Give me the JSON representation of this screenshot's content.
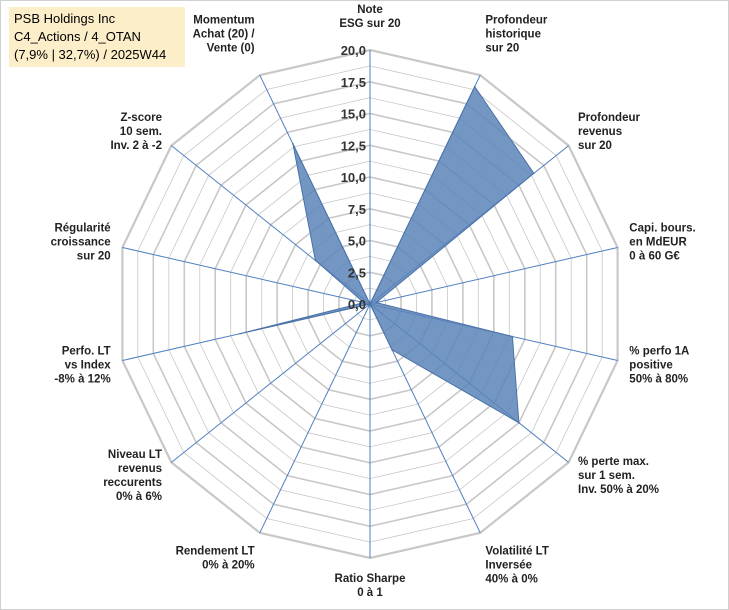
{
  "title_box": {
    "line1": "PSB Holdings Inc",
    "line2": "C4_Actions / 4_OTAN",
    "line3": "(7,9% | 32,7%) / 2025W44"
  },
  "colors": {
    "fill": "#5b84b8",
    "stroke": "#4a72a8",
    "grid": "#c8c8c8",
    "spoke": "#4f7fc0",
    "title_bg": "#fdeeca"
  },
  "chart_data": {
    "type": "radar",
    "range": [
      0,
      20
    ],
    "ticks": [
      "0,0",
      "2,5",
      "5,0",
      "7,5",
      "10,0",
      "12,5",
      "15,0",
      "17,5",
      "20,0"
    ],
    "axes": [
      {
        "label": [
          "Note",
          "ESG sur 20"
        ],
        "value": 0
      },
      {
        "label": [
          "Profondeur",
          "historique",
          "sur 20"
        ],
        "value": 19.0
      },
      {
        "label": [
          "Profondeur",
          "revenus",
          "sur 20"
        ],
        "value": 16.5
      },
      {
        "label": [
          "Capi. bours.",
          "en MdEUR",
          "0 à 60 G€"
        ],
        "value": 0.5
      },
      {
        "label": [
          "% perfo 1A",
          "positive",
          "50% à 80%"
        ],
        "value": 11.5
      },
      {
        "label": [
          "% perte max.",
          "sur 1 sem.",
          "Inv. 50% à 20%"
        ],
        "value": 15.0
      },
      {
        "label": [
          "Volatilité LT",
          "Inversée",
          "40% à 0%"
        ],
        "value": 4.0
      },
      {
        "label": [
          "Ratio Sharpe",
          "0 à 1"
        ],
        "value": 0
      },
      {
        "label": [
          "Rendement LT",
          "0% à 20%"
        ],
        "value": 0
      },
      {
        "label": [
          "Niveau LT",
          "revenus",
          "reccurents",
          "0% à 6%"
        ],
        "value": 0
      },
      {
        "label": [
          "Perfo. LT",
          "vs Index",
          "-8% à 12%"
        ],
        "value": 10.5
      },
      {
        "label": [
          "Régularité",
          "croissance",
          "sur 20"
        ],
        "value": 0.5
      },
      {
        "label": [
          "Z-score",
          "10 sem.",
          "Inv. 2 à -2"
        ],
        "value": 5.5
      },
      {
        "label": [
          "Momentum",
          "Achat (20) /",
          "Vente (0)"
        ],
        "value": 14.0
      }
    ]
  }
}
